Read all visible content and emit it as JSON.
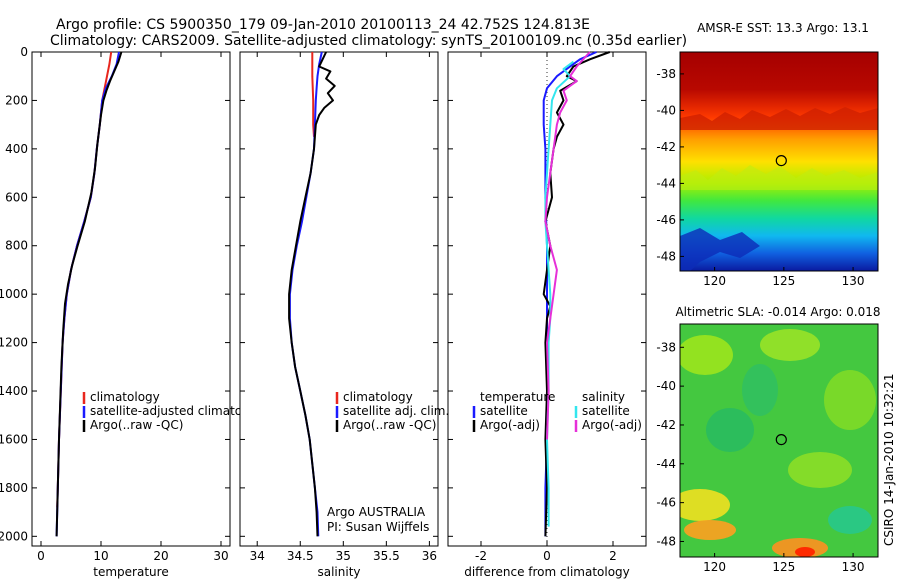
{
  "header": {
    "line1": "Argo profile: CS 5900350_179 09-Jan-2010 20100113_24 42.752S 124.813E",
    "line2": "Climatology: CARS2009. Satellite-adjusted climatology: synTS_20100109.nc (0.35d earlier)"
  },
  "side_label": "CSIRO 14-Jan-2010 10:32:21",
  "colors": {
    "red": "#e8261e",
    "blue": "#1a1aff",
    "black": "#000000",
    "cyan": "#33e6ee",
    "magenta": "#e630d8"
  },
  "chart_data": [
    {
      "type": "line",
      "id": "temperature",
      "xlabel": "temperature",
      "xlim": [
        -1.5,
        31.5
      ],
      "ylim": [
        0,
        2040
      ],
      "y_reversed": true,
      "xticks": [
        0,
        10,
        20,
        30
      ],
      "yticks": [
        0,
        200,
        400,
        600,
        800,
        1000,
        1200,
        1400,
        1600,
        1800,
        2000
      ],
      "legend": [
        {
          "label": "climatology",
          "color": "red"
        },
        {
          "label": "satellite-adjusted climatology",
          "color": "blue"
        },
        {
          "label": "Argo(..raw -QC)",
          "color": "black"
        }
      ],
      "series": [
        {
          "name": "climatology",
          "color": "red",
          "points": [
            [
              11.7,
              0
            ],
            [
              11.4,
              50
            ],
            [
              11.0,
              100
            ],
            [
              10.6,
              150
            ],
            [
              10.2,
              200
            ],
            [
              9.8,
              300
            ],
            [
              9.3,
              400
            ],
            [
              8.9,
              500
            ],
            [
              8.3,
              600
            ],
            [
              7.2,
              700
            ],
            [
              6.0,
              800
            ],
            [
              5.0,
              900
            ],
            [
              4.3,
              1000
            ],
            [
              3.9,
              1100
            ],
            [
              3.6,
              1200
            ],
            [
              3.3,
              1400
            ],
            [
              3.0,
              1600
            ],
            [
              2.8,
              1800
            ],
            [
              2.7,
              1880
            ]
          ]
        },
        {
          "name": "satellite-adjusted climatology",
          "color": "blue",
          "points": [
            [
              13.0,
              0
            ],
            [
              12.6,
              50
            ],
            [
              11.8,
              100
            ],
            [
              10.8,
              150
            ],
            [
              10.2,
              200
            ],
            [
              9.8,
              300
            ],
            [
              9.3,
              400
            ],
            [
              8.9,
              500
            ],
            [
              8.3,
              600
            ],
            [
              7.2,
              700
            ],
            [
              6.0,
              800
            ],
            [
              5.0,
              900
            ],
            [
              4.3,
              1000
            ],
            [
              3.9,
              1100
            ],
            [
              3.6,
              1200
            ],
            [
              3.3,
              1400
            ],
            [
              3.0,
              1600
            ],
            [
              2.8,
              1800
            ],
            [
              2.6,
              2000
            ]
          ]
        },
        {
          "name": "Argo(..raw -QC)",
          "color": "black",
          "points": [
            [
              13.4,
              0
            ],
            [
              12.9,
              40
            ],
            [
              12.2,
              80
            ],
            [
              11.5,
              120
            ],
            [
              10.9,
              160
            ],
            [
              10.4,
              200
            ],
            [
              10.0,
              260
            ],
            [
              9.8,
              300
            ],
            [
              9.4,
              380
            ],
            [
              9.0,
              480
            ],
            [
              8.4,
              580
            ],
            [
              7.3,
              700
            ],
            [
              6.1,
              800
            ],
            [
              5.2,
              880
            ],
            [
              4.5,
              960
            ],
            [
              4.0,
              1040
            ],
            [
              3.7,
              1150
            ],
            [
              3.4,
              1300
            ],
            [
              3.2,
              1450
            ],
            [
              3.0,
              1600
            ],
            [
              2.8,
              1800
            ],
            [
              2.6,
              2000
            ]
          ]
        }
      ]
    },
    {
      "type": "line",
      "id": "salinity",
      "xlabel": "salinity",
      "xlim": [
        33.8,
        36.1
      ],
      "ylim": [
        0,
        2040
      ],
      "y_reversed": true,
      "xticks": [
        34,
        34.5,
        35,
        35.5,
        36
      ],
      "annotation": [
        "Argo AUSTRALIA",
        "PI: Susan Wijffels"
      ],
      "legend": [
        {
          "label": "climatology",
          "color": "red"
        },
        {
          "label": "satellite adj. clim.",
          "color": "blue"
        },
        {
          "label": "Argo(..raw -QC)",
          "color": "black"
        }
      ],
      "series": [
        {
          "name": "climatology",
          "color": "red",
          "points": [
            [
              34.64,
              0
            ],
            [
              34.64,
              100
            ],
            [
              34.65,
              200
            ],
            [
              34.65,
              300
            ],
            [
              34.66,
              350
            ]
          ]
        },
        {
          "name": "satellite adj. clim.",
          "color": "blue",
          "points": [
            [
              34.75,
              0
            ],
            [
              34.72,
              50
            ],
            [
              34.7,
              100
            ],
            [
              34.69,
              150
            ],
            [
              34.68,
              200
            ],
            [
              34.67,
              300
            ],
            [
              34.66,
              400
            ],
            [
              34.62,
              500
            ],
            [
              34.57,
              600
            ],
            [
              34.52,
              700
            ],
            [
              34.46,
              800
            ],
            [
              34.41,
              900
            ],
            [
              34.38,
              1000
            ],
            [
              34.38,
              1100
            ],
            [
              34.4,
              1200
            ],
            [
              34.44,
              1300
            ],
            [
              34.5,
              1400
            ],
            [
              34.56,
              1500
            ],
            [
              34.61,
              1600
            ],
            [
              34.64,
              1700
            ],
            [
              34.67,
              1800
            ],
            [
              34.7,
              1900
            ],
            [
              34.71,
              2000
            ]
          ]
        },
        {
          "name": "Argo(..raw -QC)",
          "color": "black",
          "points": [
            [
              34.8,
              0
            ],
            [
              34.76,
              30
            ],
            [
              34.72,
              60
            ],
            [
              34.85,
              80
            ],
            [
              34.8,
              110
            ],
            [
              34.9,
              140
            ],
            [
              34.82,
              170
            ],
            [
              34.88,
              200
            ],
            [
              34.78,
              230
            ],
            [
              34.72,
              260
            ],
            [
              34.68,
              300
            ],
            [
              34.67,
              350
            ],
            [
              34.66,
              400
            ],
            [
              34.62,
              500
            ],
            [
              34.56,
              600
            ],
            [
              34.5,
              700
            ],
            [
              34.45,
              800
            ],
            [
              34.4,
              900
            ],
            [
              34.37,
              1000
            ],
            [
              34.37,
              1100
            ],
            [
              34.4,
              1200
            ],
            [
              34.44,
              1300
            ],
            [
              34.5,
              1400
            ],
            [
              34.56,
              1500
            ],
            [
              34.61,
              1600
            ],
            [
              34.64,
              1700
            ],
            [
              34.67,
              1800
            ],
            [
              34.69,
              1900
            ],
            [
              34.7,
              2000
            ]
          ]
        }
      ]
    },
    {
      "type": "line",
      "id": "difference",
      "xlabel": "difference from climatology",
      "xlim": [
        -3,
        3
      ],
      "ylim": [
        0,
        2040
      ],
      "y_reversed": true,
      "xticks": [
        -2,
        0,
        2
      ],
      "legend_left": [
        {
          "label": "temperature",
          "color": null
        },
        {
          "label": "satellite",
          "color": "blue"
        },
        {
          "label": "Argo(-adj)",
          "color": "black"
        }
      ],
      "legend_right": [
        {
          "label": "salinity",
          "color": null
        },
        {
          "label": "satellite",
          "color": "cyan"
        },
        {
          "label": "Argo(-adj)",
          "color": "magenta"
        }
      ],
      "series": [
        {
          "name": "temperature satellite",
          "color": "blue",
          "points": [
            [
              1.5,
              0
            ],
            [
              1.0,
              30
            ],
            [
              0.8,
              50
            ],
            [
              0.3,
              100
            ],
            [
              0.0,
              150
            ],
            [
              -0.1,
              200
            ],
            [
              -0.1,
              300
            ],
            [
              -0.05,
              400
            ],
            [
              -0.05,
              600
            ],
            [
              0.0,
              800
            ],
            [
              0.0,
              1000
            ],
            [
              0.0,
              1200
            ],
            [
              0.0,
              1400
            ],
            [
              0.0,
              1600
            ],
            [
              -0.05,
              1800
            ],
            [
              -0.05,
              2000
            ]
          ]
        },
        {
          "name": "temperature Argo(-adj)",
          "color": "black",
          "points": [
            [
              1.9,
              0
            ],
            [
              1.3,
              30
            ],
            [
              0.8,
              60
            ],
            [
              0.6,
              100
            ],
            [
              0.9,
              120
            ],
            [
              0.4,
              160
            ],
            [
              0.5,
              200
            ],
            [
              0.3,
              250
            ],
            [
              0.5,
              300
            ],
            [
              0.3,
              350
            ],
            [
              0.2,
              400
            ],
            [
              0.1,
              500
            ],
            [
              0.15,
              600
            ],
            [
              -0.05,
              700
            ],
            [
              0.1,
              800
            ],
            [
              0.0,
              900
            ],
            [
              -0.1,
              1000
            ],
            [
              0.1,
              1050
            ],
            [
              0.0,
              1100
            ],
            [
              -0.05,
              1200
            ],
            [
              0.0,
              1400
            ],
            [
              -0.05,
              1600
            ],
            [
              0.0,
              1800
            ],
            [
              -0.05,
              2000
            ]
          ]
        },
        {
          "name": "salinity satellite",
          "color": "cyan",
          "points": [
            [
              0.8,
              40
            ],
            [
              0.5,
              70
            ],
            [
              0.7,
              100
            ],
            [
              0.3,
              150
            ],
            [
              0.15,
              200
            ],
            [
              0.1,
              300
            ],
            [
              0.05,
              400
            ],
            [
              0.0,
              500
            ],
            [
              -0.05,
              600
            ],
            [
              -0.05,
              700
            ],
            [
              0.0,
              800
            ],
            [
              0.05,
              900
            ],
            [
              0.1,
              1000
            ],
            [
              0.1,
              1100
            ],
            [
              0.05,
              1200
            ],
            [
              0.05,
              1400
            ],
            [
              0.0,
              1600
            ],
            [
              0.05,
              1800
            ],
            [
              0.05,
              1960
            ]
          ]
        },
        {
          "name": "salinity Argo(-adj)",
          "color": "magenta",
          "points": [
            [
              1.3,
              0
            ],
            [
              0.9,
              60
            ],
            [
              0.7,
              100
            ],
            [
              0.9,
              120
            ],
            [
              0.5,
              160
            ],
            [
              0.6,
              200
            ],
            [
              0.4,
              250
            ],
            [
              0.3,
              300
            ],
            [
              0.2,
              400
            ],
            [
              0.1,
              500
            ],
            [
              0.0,
              600
            ],
            [
              -0.05,
              700
            ],
            [
              0.1,
              800
            ],
            [
              0.3,
              900
            ],
            [
              0.2,
              1000
            ],
            [
              0.1,
              1100
            ],
            [
              0.0,
              1200
            ],
            [
              0.05,
              1400
            ],
            [
              0.0,
              1600
            ]
          ]
        }
      ]
    },
    {
      "type": "heatmap",
      "id": "sst_map",
      "title": "AMSR-E SST: 13.3 Argo: 13.1",
      "xlim": [
        117.5,
        131.8
      ],
      "ylim": [
        -48.8,
        -36.8
      ],
      "xticks": [
        120,
        125,
        130
      ],
      "yticks": [
        -38,
        -40,
        -42,
        -44,
        -46,
        -48
      ],
      "marker": {
        "lon": 124.813,
        "lat": -42.752
      }
    },
    {
      "type": "heatmap",
      "id": "sla_map",
      "title": "Altimetric SLA: -0.014 Argo: 0.018",
      "xlim": [
        117.5,
        131.8
      ],
      "ylim": [
        -48.8,
        -36.8
      ],
      "xticks": [
        120,
        125,
        130
      ],
      "yticks": [
        -38,
        -40,
        -42,
        -44,
        -46,
        -48
      ],
      "marker": {
        "lon": 124.813,
        "lat": -42.752
      }
    }
  ]
}
